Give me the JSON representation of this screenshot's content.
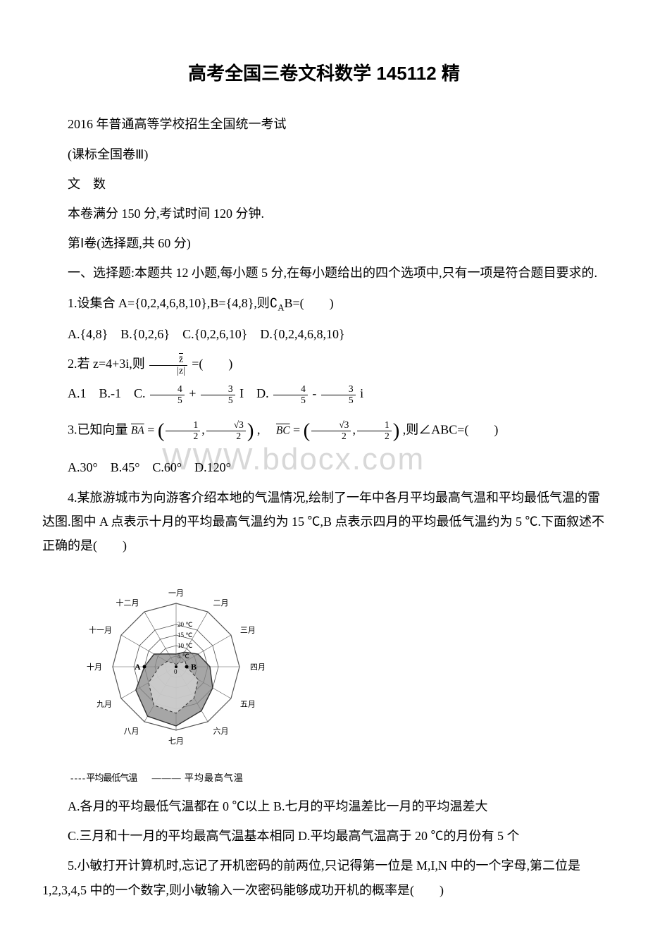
{
  "title": "高考全国三卷文科数学 145112 精",
  "lines": {
    "l1": "2016 年普通高等学校招生全国统一考试",
    "l2": "(课标全国卷Ⅲ)",
    "l3": "文　数",
    "l4": "本卷满分 150 分,考试时间 120 分钟.",
    "l5": "第Ⅰ卷(选择题,共 60 分)",
    "l6": "一、选择题:本题共 12 小题,每小题 5 分,在每小题给出的四个选项中,只有一项是符合题目要求的.",
    "q1": "1.设集合 A={0,2,4,6,8,10},B={4,8},则∁",
    "q1_sub": "A",
    "q1_tail": "B=(　　)",
    "q1_opts": "A.{4,8}　B.{0,2,6}　C.{0,2,6,10}　D.{0,2,4,6,8,10}",
    "q2_pre": "2.若 z=4+3i,则 ",
    "q2_post": " =(　　)",
    "q2_opts_a": "A.1　B.-1　C. ",
    "q2_opts_b": " + ",
    "q2_opts_c": " I　D. ",
    "q2_opts_d": " - ",
    "q2_opts_e": " i",
    "q3_pre": "3.已知向量 ",
    "q3_ba": "BA",
    "q3_eq1": " = ",
    "q3_mid": " ,　",
    "q3_bc": "BC",
    "q3_eq2": " = ",
    "q3_post": " ,则∠ABC=(　　)",
    "q3_opts": "A.30°　B.45°　C.60°　D.120°",
    "q4": "4.某旅游城市为向游客介绍本地的气温情况,绘制了一年中各月平均最高气温和平均最低气温的雷达图.图中 A 点表示十月的平均最高气温约为 15 ℃,B 点表示四月的平均最低气温约为 5 ℃.下面叙述不正确的是(　　)",
    "q4_opts1": "A.各月的平均最低气温都在 0 ℃以上 B.七月的平均温差比一月的平均温差大",
    "q4_opts2": "C.三月和十一月的平均最高气温基本相同 D.平均最高气温高于 20 ℃的月份有 5 个",
    "q5": "5.小敏打开计算机时,忘记了开机密码的前两位,只记得第一位是 M,I,N 中的一个字母,第二位是 1,2,3,4,5 中的一个数字,则小敏输入一次密码能够成功开机的概率是(　　)"
  },
  "fractions": {
    "zbar": "z̄",
    "zabs": "|z|",
    "f45n": "4",
    "f45d": "5",
    "f35n": "3",
    "f35d": "5",
    "f12n": "1",
    "f12d": "2",
    "fs32n": "√3",
    "fs32d": "2"
  },
  "watermark": "WWW.bdocx.com",
  "radar": {
    "months": [
      "一月",
      "二月",
      "三月",
      "四月",
      "五月",
      "六月",
      "七月",
      "八月",
      "九月",
      "十月",
      "十一月",
      "十二月"
    ],
    "rings": [
      "0",
      "5 ℃",
      "10 ℃",
      "15 ℃",
      "20 ℃"
    ],
    "ring_values": [
      0,
      5,
      10,
      15,
      20
    ],
    "max_radius": 100,
    "colors": {
      "grid": "#555555",
      "low_fill": "#d0d0d0",
      "high_fill": "#888888",
      "text": "#000000",
      "bg": "#ffffff"
    },
    "high_temp": [
      6,
      8,
      12,
      16,
      20,
      24,
      28,
      27,
      22,
      15,
      12,
      7
    ],
    "low_temp": [
      1,
      2,
      5,
      5,
      12,
      17,
      22,
      21,
      15,
      8,
      5,
      2
    ],
    "labels_AB": {
      "A_month_index": 9,
      "B_month_index": 3
    },
    "legend_low": "- - - - 平均最低气温",
    "legend_high": "——— 平均最高气温"
  }
}
